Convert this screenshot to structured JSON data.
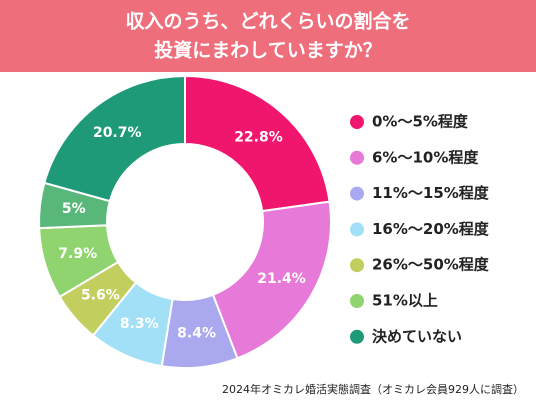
{
  "chart_data": {
    "type": "donut",
    "title": [
      "収入のうち、どれくらいの割合を",
      "投資にまわしていますか？"
    ],
    "categories": [
      "0%〜5%程度",
      "6%〜10%程度",
      "11%〜15%程度",
      "16%〜20%程度",
      "26%〜50%程度",
      "51%以上",
      null,
      "決めていない"
    ],
    "values": [
      22.8,
      21.4,
      8.4,
      8.3,
      5.6,
      7.9,
      5,
      20.7
    ],
    "value_labels": [
      "22.8%",
      "21.4%",
      "8.4%",
      "8.3%",
      "5.6%",
      "7.9%",
      "5%",
      "20.7%"
    ],
    "colors": [
      "#f0166e",
      "#e77ad9",
      "#aaa8ef",
      "#a2e0f7",
      "#c2cf5f",
      "#8fd46f",
      "#5ab77a",
      "#1e9a78"
    ],
    "source": "2024年オミカレ婚活実態調査（オミカレ会員929人に調査）"
  }
}
